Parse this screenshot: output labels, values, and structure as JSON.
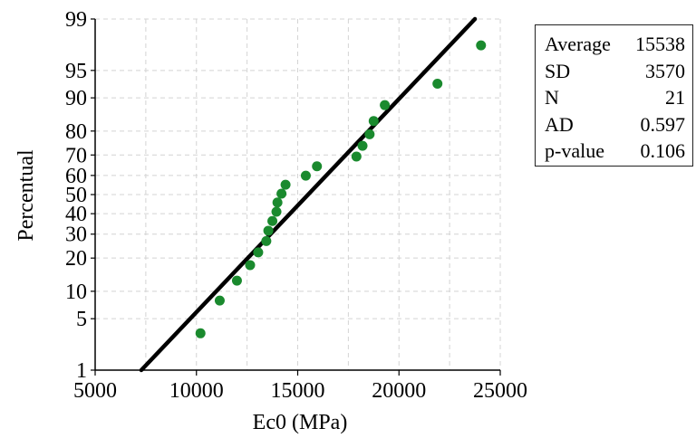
{
  "chart_data": {
    "type": "scatter",
    "subtype": "normal-probability-plot",
    "xlabel": "Ec0 (MPa)",
    "ylabel": "Percentual",
    "xlim": [
      5000,
      25000
    ],
    "ylim": [
      1,
      99
    ],
    "y_scale": "normal-probability",
    "x_ticks": [
      5000,
      10000,
      15000,
      20000,
      25000
    ],
    "y_ticks": [
      1,
      5,
      10,
      20,
      30,
      40,
      50,
      60,
      70,
      80,
      90,
      95,
      99
    ],
    "grid": true,
    "legend": "none",
    "colors": {
      "points": "#1a8a2e",
      "fit_line": "#000000",
      "grid": "#d4d4d4",
      "axis": "#000000"
    },
    "fit_line": {
      "x": [
        7280,
        23750
      ],
      "y": [
        1,
        99
      ]
    },
    "points": [
      {
        "x": 10200,
        "y": 3.3
      },
      {
        "x": 11150,
        "y": 8.0
      },
      {
        "x": 12000,
        "y": 12.7
      },
      {
        "x": 12650,
        "y": 17.5
      },
      {
        "x": 13050,
        "y": 22.2
      },
      {
        "x": 13450,
        "y": 26.9
      },
      {
        "x": 13550,
        "y": 31.6
      },
      {
        "x": 13750,
        "y": 36.3
      },
      {
        "x": 13950,
        "y": 41.0
      },
      {
        "x": 14000,
        "y": 45.8
      },
      {
        "x": 14200,
        "y": 50.5
      },
      {
        "x": 14400,
        "y": 55.2
      },
      {
        "x": 15400,
        "y": 59.9
      },
      {
        "x": 15950,
        "y": 64.6
      },
      {
        "x": 17900,
        "y": 69.3
      },
      {
        "x": 18200,
        "y": 74.1
      },
      {
        "x": 18550,
        "y": 78.8
      },
      {
        "x": 18750,
        "y": 83.5
      },
      {
        "x": 19300,
        "y": 88.2
      },
      {
        "x": 21900,
        "y": 92.9
      },
      {
        "x": 24050,
        "y": 97.6
      }
    ]
  },
  "stats": [
    {
      "label": "Average",
      "value": "15538"
    },
    {
      "label": "SD",
      "value": "3570"
    },
    {
      "label": "N",
      "value": "21"
    },
    {
      "label": "AD",
      "value": "0.597"
    },
    {
      "label": "p-value",
      "value": "0.106"
    }
  ]
}
